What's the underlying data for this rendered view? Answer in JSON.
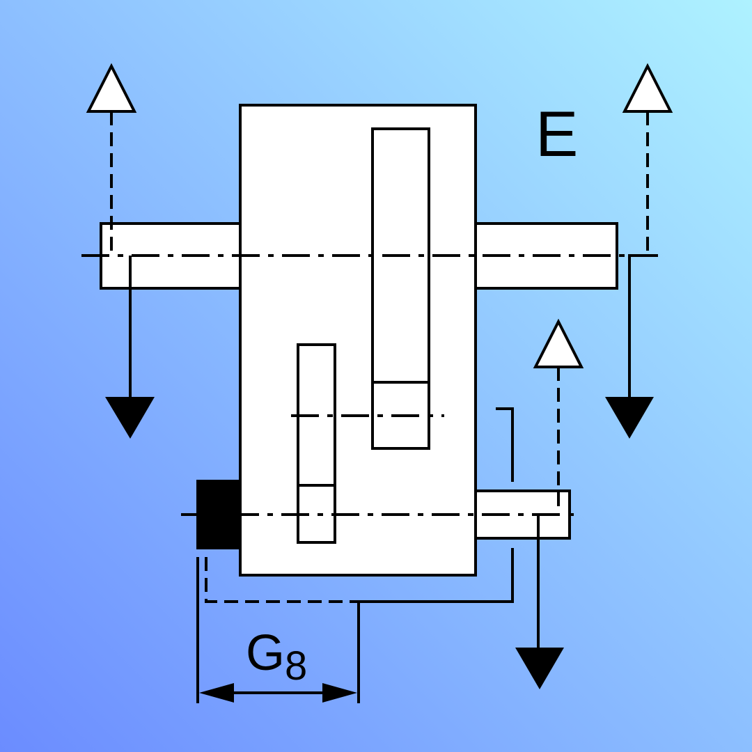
{
  "diagram": {
    "label_main": "E",
    "dimension": {
      "letter": "G",
      "subscript": "8"
    },
    "colors": {
      "background_start": "#6b8cff",
      "background_end": "#aef2ff",
      "part_fill": "#ffffff",
      "stroke": "#000000"
    }
  }
}
